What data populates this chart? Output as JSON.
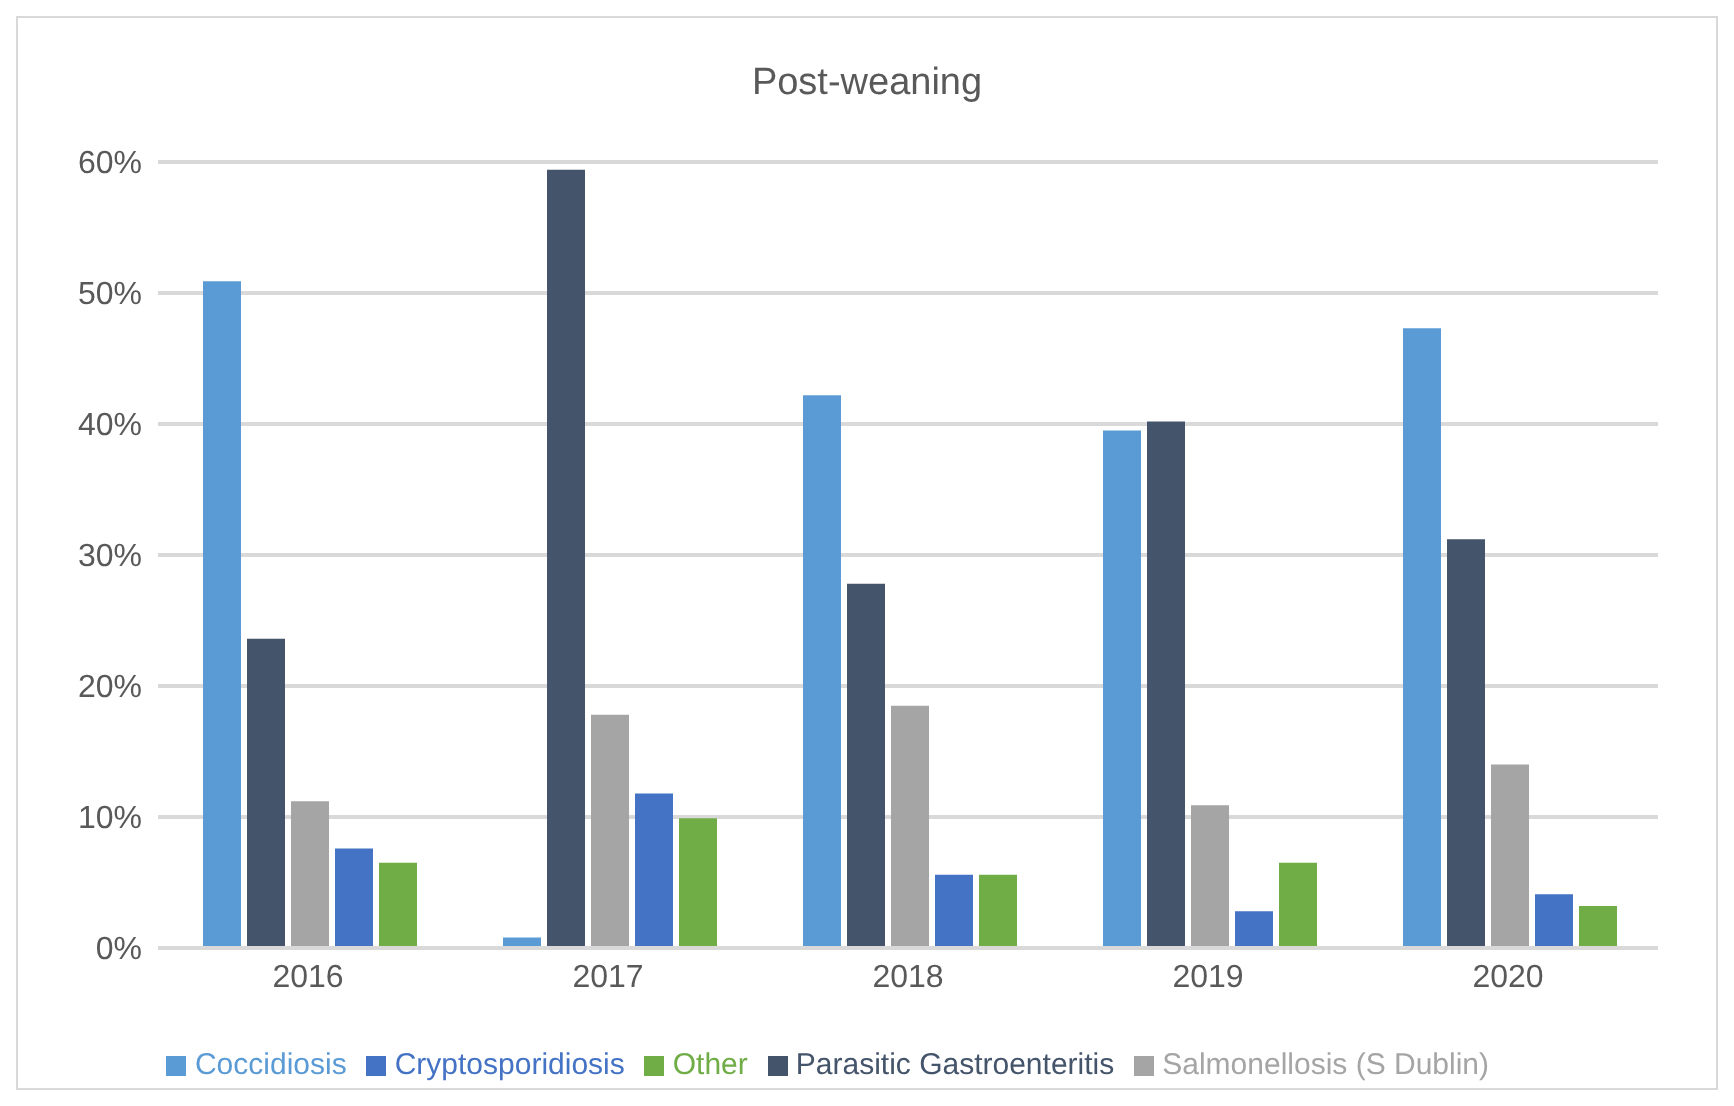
{
  "chart_data": {
    "type": "bar",
    "title": "Post-weaning",
    "categories": [
      "2016",
      "2017",
      "2018",
      "2019",
      "2020"
    ],
    "series": [
      {
        "name": "Coccidiosis",
        "color": "#5b9bd5",
        "values": [
          50.9,
          0.8,
          42.2,
          39.5,
          47.3
        ]
      },
      {
        "name": "Parasitic Gastroenteritis",
        "color": "#44546a",
        "values": [
          23.6,
          59.4,
          27.8,
          40.2,
          31.2
        ]
      },
      {
        "name": "Salmonellosis (S Dublin)",
        "color": "#a5a5a5",
        "values": [
          11.2,
          17.8,
          18.5,
          10.9,
          14.0
        ]
      },
      {
        "name": "Cryptosporidiosis",
        "color": "#4472c4",
        "values": [
          7.6,
          11.8,
          5.6,
          2.8,
          4.1
        ]
      },
      {
        "name": "Other",
        "color": "#70ad47",
        "values": [
          6.5,
          9.9,
          5.6,
          6.5,
          3.2
        ]
      }
    ],
    "ylim": [
      0,
      60
    ],
    "yticks": [
      {
        "value": 0,
        "label": "0%"
      },
      {
        "value": 10,
        "label": "10%"
      },
      {
        "value": 20,
        "label": "20%"
      },
      {
        "value": 30,
        "label": "30%"
      },
      {
        "value": 40,
        "label": "40%"
      },
      {
        "value": 50,
        "label": "50%"
      },
      {
        "value": 60,
        "label": "60%"
      }
    ],
    "grid": "y",
    "legend": "bottom"
  }
}
